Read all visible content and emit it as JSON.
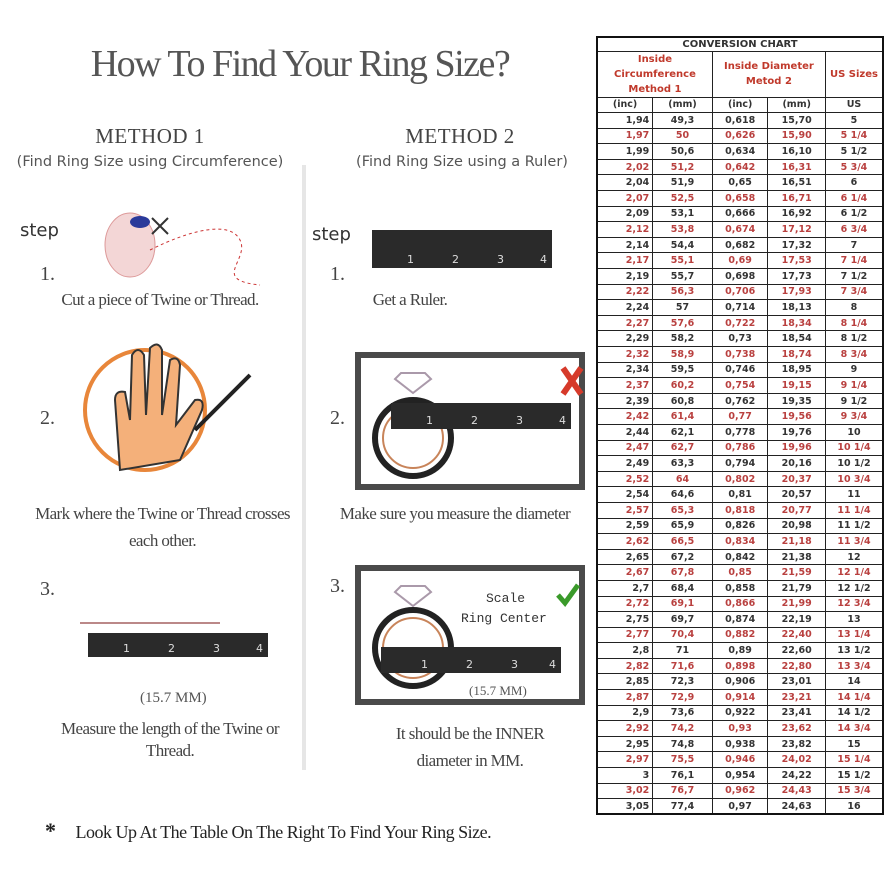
{
  "title": "How To Find Your Ring Size?",
  "method1": {
    "heading": "METHOD 1",
    "subtitle": "(Find Ring Size using Circumference)",
    "step_label": "step",
    "steps": [
      {
        "num": "1.",
        "text": "Cut a piece of Twine or Thread."
      },
      {
        "num": "2.",
        "text": "Mark where the Twine or Thread crosses each other."
      },
      {
        "num": "3.",
        "text": "Measure the length of the Twine or Thread."
      }
    ],
    "measure": "(15.7 MM)"
  },
  "method2": {
    "heading": "METHOD 2",
    "subtitle": "(Find Ring Size using a Ruler)",
    "step_label": "step",
    "steps": [
      {
        "num": "1.",
        "text": "Get a Ruler."
      },
      {
        "num": "2.",
        "text": "Make sure you measure the diameter"
      },
      {
        "num": "3.",
        "text": "It should be the INNER diameter in MM."
      }
    ],
    "scale_label": "Scale",
    "center_label": "Ring Center",
    "measure": "(15.7 MM)"
  },
  "ruler_labels": [
    "1",
    "2",
    "3",
    "4"
  ],
  "footnote_marker": "*",
  "footnote": "Look Up At The Table On The Right To Find Your Ring Size.",
  "colors": {
    "red": "#b9403f",
    "check": "#3a9a2a",
    "cross": "#d63a2a",
    "ring": "#c8845a"
  },
  "table": {
    "title": "CONVERSION CHART",
    "group1": "Inside Circumference Method 1",
    "group2": "Inside Diameter Metod 2",
    "group3": "US Sizes",
    "units": [
      "(inc)",
      "(mm)",
      "(inc)",
      "(mm)",
      "US"
    ],
    "rows": [
      [
        "1,94",
        "49,3",
        "0,618",
        "15,70",
        "5"
      ],
      [
        "1,97",
        "50",
        "0,626",
        "15,90",
        "5 1/4"
      ],
      [
        "1,99",
        "50,6",
        "0,634",
        "16,10",
        "5 1/2"
      ],
      [
        "2,02",
        "51,2",
        "0,642",
        "16,31",
        "5 3/4"
      ],
      [
        "2,04",
        "51,9",
        "0,65",
        "16,51",
        "6"
      ],
      [
        "2,07",
        "52,5",
        "0,658",
        "16,71",
        "6 1/4"
      ],
      [
        "2,09",
        "53,1",
        "0,666",
        "16,92",
        "6 1/2"
      ],
      [
        "2,12",
        "53,8",
        "0,674",
        "17,12",
        "6 3/4"
      ],
      [
        "2,14",
        "54,4",
        "0,682",
        "17,32",
        "7"
      ],
      [
        "2,17",
        "55,1",
        "0,69",
        "17,53",
        "7 1/4"
      ],
      [
        "2,19",
        "55,7",
        "0,698",
        "17,73",
        "7 1/2"
      ],
      [
        "2,22",
        "56,3",
        "0,706",
        "17,93",
        "7 3/4"
      ],
      [
        "2,24",
        "57",
        "0,714",
        "18,13",
        "8"
      ],
      [
        "2,27",
        "57,6",
        "0,722",
        "18,34",
        "8 1/4"
      ],
      [
        "2,29",
        "58,2",
        "0,73",
        "18,54",
        "8 1/2"
      ],
      [
        "2,32",
        "58,9",
        "0,738",
        "18,74",
        "8 3/4"
      ],
      [
        "2,34",
        "59,5",
        "0,746",
        "18,95",
        "9"
      ],
      [
        "2,37",
        "60,2",
        "0,754",
        "19,15",
        "9 1/4"
      ],
      [
        "2,39",
        "60,8",
        "0,762",
        "19,35",
        "9 1/2"
      ],
      [
        "2,42",
        "61,4",
        "0,77",
        "19,56",
        "9 3/4"
      ],
      [
        "2,44",
        "62,1",
        "0,778",
        "19,76",
        "10"
      ],
      [
        "2,47",
        "62,7",
        "0,786",
        "19,96",
        "10 1/4"
      ],
      [
        "2,49",
        "63,3",
        "0,794",
        "20,16",
        "10 1/2"
      ],
      [
        "2,52",
        "64",
        "0,802",
        "20,37",
        "10 3/4"
      ],
      [
        "2,54",
        "64,6",
        "0,81",
        "20,57",
        "11"
      ],
      [
        "2,57",
        "65,3",
        "0,818",
        "20,77",
        "11 1/4"
      ],
      [
        "2,59",
        "65,9",
        "0,826",
        "20,98",
        "11 1/2"
      ],
      [
        "2,62",
        "66,5",
        "0,834",
        "21,18",
        "11 3/4"
      ],
      [
        "2,65",
        "67,2",
        "0,842",
        "21,38",
        "12"
      ],
      [
        "2,67",
        "67,8",
        "0,85",
        "21,59",
        "12 1/4"
      ],
      [
        "2,7",
        "68,4",
        "0,858",
        "21,79",
        "12 1/2"
      ],
      [
        "2,72",
        "69,1",
        "0,866",
        "21,99",
        "12 3/4"
      ],
      [
        "2,75",
        "69,7",
        "0,874",
        "22,19",
        "13"
      ],
      [
        "2,77",
        "70,4",
        "0,882",
        "22,40",
        "13 1/4"
      ],
      [
        "2,8",
        "71",
        "0,89",
        "22,60",
        "13 1/2"
      ],
      [
        "2,82",
        "71,6",
        "0,898",
        "22,80",
        "13 3/4"
      ],
      [
        "2,85",
        "72,3",
        "0,906",
        "23,01",
        "14"
      ],
      [
        "2,87",
        "72,9",
        "0,914",
        "23,21",
        "14 1/4"
      ],
      [
        "2,9",
        "73,6",
        "0,922",
        "23,41",
        "14 1/2"
      ],
      [
        "2,92",
        "74,2",
        "0,93",
        "23,62",
        "14 3/4"
      ],
      [
        "2,95",
        "74,8",
        "0,938",
        "23,82",
        "15"
      ],
      [
        "2,97",
        "75,5",
        "0,946",
        "24,02",
        "15 1/4"
      ],
      [
        "3",
        "76,1",
        "0,954",
        "24,22",
        "15 1/2"
      ],
      [
        "3,02",
        "76,7",
        "0,962",
        "24,43",
        "15 3/4"
      ],
      [
        "3,05",
        "77,4",
        "0,97",
        "24,63",
        "16"
      ]
    ]
  }
}
